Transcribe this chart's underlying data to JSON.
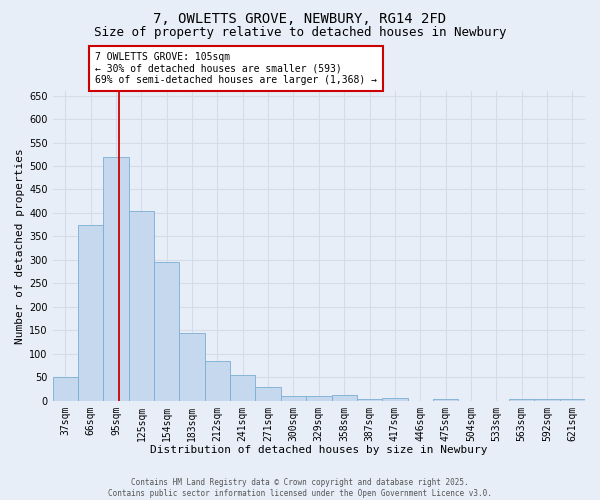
{
  "title": "7, OWLETTS GROVE, NEWBURY, RG14 2FD",
  "subtitle": "Size of property relative to detached houses in Newbury",
  "xlabel": "Distribution of detached houses by size in Newbury",
  "ylabel": "Number of detached properties",
  "footer_line1": "Contains HM Land Registry data © Crown copyright and database right 2025.",
  "footer_line2": "Contains public sector information licensed under the Open Government Licence v3.0.",
  "categories": [
    "37sqm",
    "66sqm",
    "95sqm",
    "125sqm",
    "154sqm",
    "183sqm",
    "212sqm",
    "241sqm",
    "271sqm",
    "300sqm",
    "329sqm",
    "358sqm",
    "387sqm",
    "417sqm",
    "446sqm",
    "475sqm",
    "504sqm",
    "533sqm",
    "563sqm",
    "592sqm",
    "621sqm"
  ],
  "values": [
    50,
    375,
    520,
    405,
    295,
    145,
    85,
    55,
    30,
    11,
    10,
    13,
    3,
    5,
    0,
    4,
    0,
    0,
    3,
    4,
    3
  ],
  "bar_color": "#c5d8ee",
  "bar_edge_color": "#7aadd4",
  "vline_x": 2.1,
  "vline_color": "#cc0000",
  "annotation_text": "7 OWLETTS GROVE: 105sqm\n← 30% of detached houses are smaller (593)\n69% of semi-detached houses are larger (1,368) →",
  "annotation_box_color": "white",
  "annotation_box_edge": "#cc0000",
  "ylim": [
    0,
    660
  ],
  "yticks": [
    0,
    50,
    100,
    150,
    200,
    250,
    300,
    350,
    400,
    450,
    500,
    550,
    600,
    650
  ],
  "bg_color": "#e8eef8",
  "grid_color": "#d4dcea",
  "title_fontsize": 10,
  "subtitle_fontsize": 9,
  "xlabel_fontsize": 8,
  "ylabel_fontsize": 8,
  "tick_fontsize": 7,
  "annotation_fontsize": 7,
  "footer_fontsize": 5.5
}
